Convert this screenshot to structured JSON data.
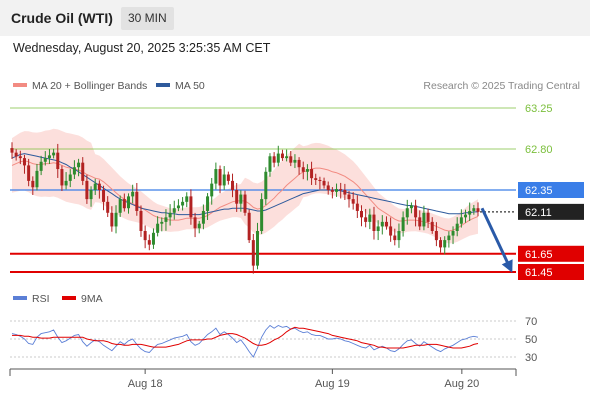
{
  "header": {
    "title": "Crude Oil (WTI)",
    "interval": "30 MIN"
  },
  "datetime": "Wednesday, August 20, 2025 3:25:35 AM CET",
  "legend": {
    "main": [
      {
        "label": "MA 20 + Bollinger Bands",
        "color": "#f28b82"
      },
      {
        "label": "MA 50",
        "color": "#2e5a9c"
      }
    ],
    "rsi": [
      {
        "label": "RSI",
        "color": "#5b7fd6"
      },
      {
        "label": "9MA",
        "color": "#e00000"
      }
    ]
  },
  "credit": "Research © 2025 Trading Central",
  "colors": {
    "up_candle": "#2e8b2e",
    "down_candle": "#b22222",
    "resistance": "#7bbf3c",
    "pivot": "#3a7ee8",
    "support": "#e00000",
    "bollinger": "#fcd9d6",
    "ma50": "#2e5a9c",
    "arrow": "#2a5aa8"
  },
  "chart_data": [
    {
      "type": "candlestick",
      "title": "",
      "ylim": [
        61.3,
        63.4
      ],
      "x_ticks": [
        "Aug 18",
        "Aug 19",
        "Aug 20"
      ],
      "levels": [
        {
          "value": 63.25,
          "label": "63.25",
          "kind": "resistance"
        },
        {
          "value": 62.8,
          "label": "62.80",
          "kind": "resistance"
        },
        {
          "value": 62.35,
          "label": "62.35",
          "kind": "pivot"
        },
        {
          "value": 62.11,
          "label": "62.11",
          "kind": "last"
        },
        {
          "value": 61.65,
          "label": "61.65",
          "kind": "support"
        },
        {
          "value": 61.45,
          "label": "61.45",
          "kind": "support"
        }
      ],
      "close": [
        62.76,
        62.72,
        62.7,
        62.62,
        62.45,
        62.38,
        62.56,
        62.66,
        62.7,
        62.73,
        62.76,
        62.58,
        62.4,
        62.45,
        62.52,
        62.6,
        62.65,
        62.45,
        62.25,
        62.35,
        62.42,
        62.35,
        62.22,
        62.1,
        61.95,
        62.1,
        62.25,
        62.15,
        62.28,
        62.33,
        62.12,
        61.9,
        61.8,
        61.75,
        61.88,
        61.98,
        62.0,
        62.05,
        62.1,
        62.15,
        62.18,
        62.22,
        62.28,
        62.05,
        61.93,
        61.98,
        62.12,
        62.28,
        62.42,
        62.58,
        62.4,
        62.52,
        62.45,
        62.35,
        62.2,
        62.3,
        62.1,
        61.8,
        61.52,
        61.9,
        62.25,
        62.55,
        62.72,
        62.65,
        62.75,
        62.7,
        62.72,
        62.65,
        62.68,
        62.6,
        62.55,
        62.58,
        62.48,
        62.46,
        62.45,
        62.4,
        62.35,
        62.33,
        62.36,
        62.35,
        62.3,
        62.25,
        62.2,
        62.12,
        62.05,
        62.0,
        62.08,
        61.9,
        61.95,
        62.0,
        61.95,
        61.85,
        61.8,
        61.9,
        62.05,
        62.15,
        62.18,
        62.05,
        61.95,
        62.1,
        62.0,
        61.9,
        61.8,
        61.72,
        61.8,
        61.85,
        61.9,
        61.98,
        62.05,
        62.08,
        62.12,
        62.15,
        62.11
      ],
      "ma20": [
        62.62,
        62.64,
        62.66,
        62.67,
        62.66,
        62.64,
        62.63,
        62.63,
        62.64,
        62.64,
        62.65,
        62.64,
        62.62,
        62.6,
        62.59,
        62.58,
        62.57,
        62.55,
        62.52,
        62.5,
        62.48,
        62.47,
        62.44,
        62.4,
        62.36,
        62.32,
        62.28,
        62.25,
        62.22,
        62.2,
        62.18,
        62.16,
        62.13,
        62.1,
        62.07,
        62.05,
        62.04,
        62.03,
        62.02,
        62.02,
        62.02,
        62.03,
        62.04,
        62.04,
        62.04,
        62.04,
        62.05,
        62.07,
        62.1,
        62.13,
        62.16,
        62.18,
        62.2,
        62.22,
        62.23,
        62.23,
        62.23,
        62.2,
        62.16,
        62.14,
        62.15,
        62.18,
        62.22,
        62.26,
        62.31,
        62.35,
        62.4,
        62.44,
        62.48,
        62.52,
        62.55,
        62.56,
        62.58,
        62.59,
        62.59,
        62.58,
        62.57,
        62.55,
        62.54,
        62.52,
        62.5,
        62.47,
        62.44,
        62.4,
        62.35,
        62.3,
        62.25,
        62.2,
        62.15,
        62.12,
        62.09,
        62.06,
        62.03,
        62.01,
        62.01,
        62.02,
        62.02,
        62.02,
        62.01,
        62.0,
        61.99,
        61.97,
        61.95,
        61.93,
        61.91,
        61.9,
        61.91,
        61.93,
        61.96,
        61.99,
        62.02,
        62.04,
        62.06
      ],
      "ma50": [
        62.7,
        62.72,
        62.74,
        62.75,
        62.74,
        62.73,
        62.72,
        62.71,
        62.7,
        62.69,
        62.68,
        62.67,
        62.65,
        62.63,
        62.6,
        62.58,
        62.55,
        62.52,
        62.49,
        62.46,
        62.43,
        62.4,
        62.37,
        62.34,
        62.31,
        62.28,
        62.25,
        62.23,
        62.21,
        62.19,
        62.17,
        62.15,
        62.14,
        62.13,
        62.12,
        62.11,
        62.1,
        62.1,
        62.09,
        62.09,
        62.08,
        62.08,
        62.08,
        62.08,
        62.08,
        62.08,
        62.09,
        62.1,
        62.11,
        62.12,
        62.13,
        62.14,
        62.14,
        62.15,
        62.15,
        62.15,
        62.15,
        62.14,
        62.13,
        62.12,
        62.12,
        62.13,
        62.15,
        62.17,
        62.19,
        62.21,
        62.23,
        62.25,
        62.27,
        62.29,
        62.31,
        62.32,
        62.33,
        62.34,
        62.35,
        62.35,
        62.35,
        62.35,
        62.35,
        62.34,
        62.33,
        62.32,
        62.31,
        62.3,
        62.29,
        62.28,
        62.27,
        62.26,
        62.25,
        62.24,
        62.23,
        62.22,
        62.21,
        62.2,
        62.19,
        62.18,
        62.18,
        62.17,
        62.16,
        62.15,
        62.14,
        62.13,
        62.12,
        62.11,
        62.1,
        62.09,
        62.09,
        62.09,
        62.09,
        62.1,
        62.1,
        62.11,
        62.11
      ],
      "projection": {
        "from": 62.15,
        "to": 61.45
      }
    },
    {
      "type": "line",
      "title": "",
      "ylim": [
        20,
        80
      ],
      "y_ticks": [
        70,
        50,
        30
      ],
      "rsi": [
        56,
        55,
        53,
        50,
        45,
        44,
        52,
        56,
        57,
        58,
        60,
        52,
        46,
        48,
        51,
        54,
        55,
        47,
        42,
        46,
        49,
        47,
        43,
        40,
        37,
        42,
        47,
        44,
        48,
        50,
        44,
        39,
        36,
        35,
        40,
        44,
        45,
        47,
        49,
        51,
        52,
        53,
        55,
        47,
        43,
        45,
        50,
        55,
        58,
        62,
        55,
        58,
        55,
        51,
        46,
        49,
        43,
        36,
        30,
        40,
        52,
        60,
        65,
        62,
        65,
        63,
        64,
        61,
        62,
        59,
        57,
        58,
        55,
        54,
        54,
        52,
        50,
        50,
        51,
        50,
        48,
        47,
        45,
        43,
        41,
        40,
        43,
        38,
        40,
        42,
        40,
        37,
        36,
        39,
        44,
        48,
        49,
        45,
        42,
        47,
        44,
        41,
        38,
        36,
        39,
        41,
        43,
        46,
        49,
        50,
        52,
        53,
        52
      ],
      "ma9": [
        54,
        54,
        54,
        53,
        53,
        52,
        52,
        51,
        51,
        51,
        52,
        52,
        52,
        52,
        52,
        52,
        52,
        52,
        50,
        49,
        48,
        48,
        48,
        47,
        45,
        44,
        44,
        43,
        43,
        44,
        44,
        44,
        43,
        42,
        41,
        41,
        41,
        41,
        42,
        43,
        44,
        46,
        48,
        49,
        49,
        49,
        49,
        50,
        50,
        52,
        54,
        55,
        56,
        56,
        55,
        53,
        51,
        48,
        45,
        43,
        43,
        44,
        46,
        49,
        51,
        54,
        58,
        61,
        63,
        62,
        62,
        61,
        60,
        59,
        58,
        57,
        56,
        54,
        53,
        52,
        51,
        50,
        49,
        48,
        46,
        45,
        44,
        43,
        41,
        41,
        40,
        40,
        40,
        40,
        40,
        41,
        42,
        43,
        43,
        43,
        44,
        44,
        44,
        43,
        42,
        41,
        40,
        40,
        40,
        41,
        42,
        44,
        45
      ]
    }
  ]
}
